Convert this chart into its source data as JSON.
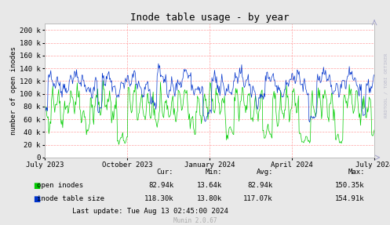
{
  "title": "Inode table usage - by year",
  "ylabel": "number of open inodes",
  "xlabel_ticks": [
    "July 2023",
    "October 2023",
    "January 2024",
    "April 2024",
    "July 2024"
  ],
  "ytick_labels": [
    "0",
    "20 k",
    "40 k",
    "60 k",
    "80 k",
    "100 k",
    "120 k",
    "140 k",
    "160 k",
    "180 k",
    "200 k"
  ],
  "ytick_values": [
    0,
    20000,
    40000,
    60000,
    80000,
    100000,
    120000,
    140000,
    160000,
    180000,
    200000
  ],
  "ylim": [
    0,
    210000
  ],
  "bg_color": "#e8e8e8",
  "plot_bg_color": "#ffffff",
  "grid_color": "#ff9999",
  "line_color_green": "#00cc00",
  "line_color_blue": "#0033cc",
  "legend": [
    "open inodes",
    "inode table size"
  ],
  "stats_headers": [
    "Cur:",
    "Min:",
    "Avg:",
    "Max:"
  ],
  "stats_green": [
    "82.94k",
    "13.64k",
    "82.94k",
    "150.35k"
  ],
  "stats_blue": [
    "118.30k",
    "13.80k",
    "117.07k",
    "154.91k"
  ],
  "last_update": "Last update: Tue Aug 13 02:45:00 2024",
  "munin_version": "Munin 2.0.67",
  "watermark": "RRDTOOL / TOBI OETIKER",
  "n_points": 500
}
